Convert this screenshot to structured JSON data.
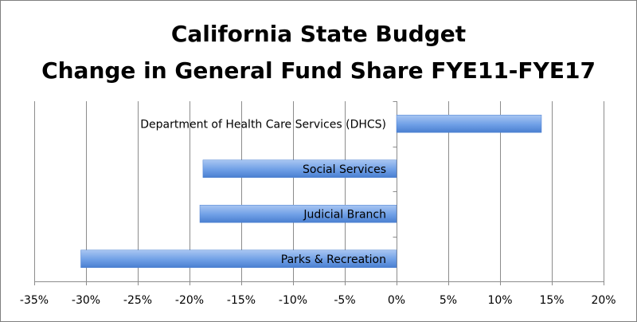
{
  "chart_data": {
    "type": "bar",
    "orientation": "horizontal",
    "title": [
      "California State Budget",
      "Change in General Fund Share FYE11-FYE17"
    ],
    "categories": [
      "Department of Health Care Services (DHCS)",
      "Social Services",
      "Judicial Branch",
      "Parks & Recreation"
    ],
    "values": [
      14,
      -18.7,
      -19,
      -30.5
    ],
    "xlim": [
      -35,
      20
    ],
    "xticks": [
      -35,
      -30,
      -25,
      -20,
      -15,
      -10,
      -5,
      0,
      5,
      10,
      15,
      20
    ],
    "tick_labels": [
      "-35%",
      "-30%",
      "-25%",
      "-20%",
      "-15%",
      "-10%",
      "-5%",
      "0%",
      "5%",
      "10%",
      "15%",
      "20%"
    ],
    "grid": true,
    "legend": "none",
    "colors": {
      "bar_light": "#a9c6f2",
      "bar_mid": "#6f9fe6",
      "bar_dark": "#4a7fd0",
      "grid": "#8c8c8c"
    }
  }
}
